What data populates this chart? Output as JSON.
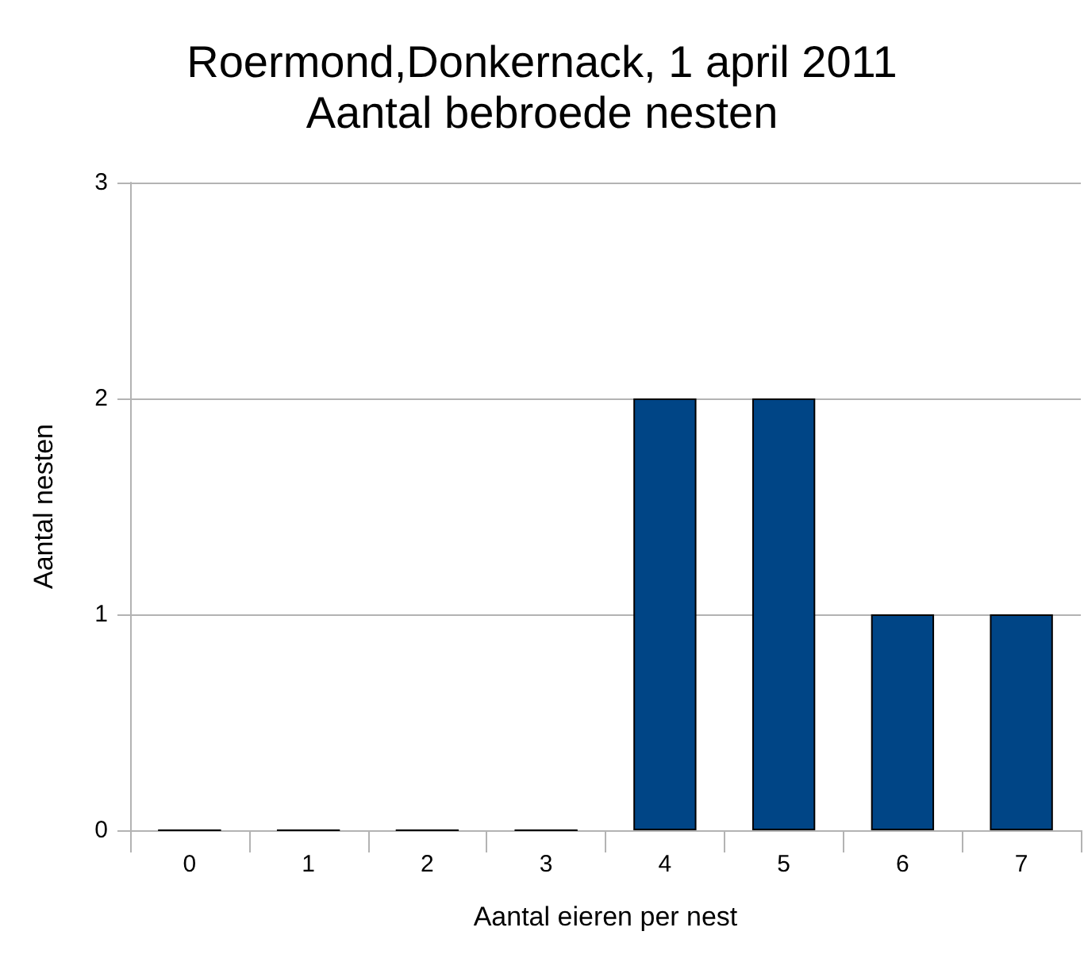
{
  "chart_data": {
    "type": "bar",
    "title": "Roermond,Donkernack, 1 april 2011\nAantal bebroede nesten",
    "xlabel": "Aantal eieren per nest",
    "ylabel": "Aantal nesten",
    "categories": [
      "0",
      "1",
      "2",
      "3",
      "4",
      "5",
      "6",
      "7"
    ],
    "values": [
      0,
      0,
      0,
      0,
      2,
      2,
      1,
      1
    ],
    "color": "#004586",
    "ylim": [
      0,
      3
    ],
    "yticks": [
      0,
      1,
      2,
      3
    ],
    "grid": "y"
  }
}
